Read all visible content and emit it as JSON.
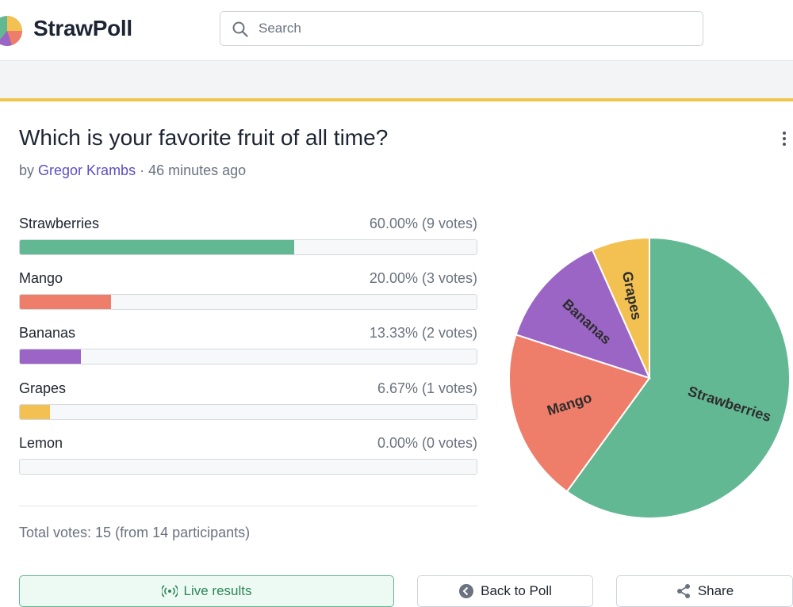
{
  "app": {
    "name": "StrawPoll"
  },
  "search": {
    "placeholder": "Search",
    "value": ""
  },
  "poll": {
    "title": "Which is your favorite fruit of all time?",
    "by_prefix": "by",
    "author": "Gregor Krambs",
    "separator": "·",
    "time_ago": "46 minutes ago",
    "total_text": "Total votes: 15 (from 14 participants)"
  },
  "options": [
    {
      "name": "Strawberries",
      "result": "60.00% (9 votes)",
      "percent": 60.0,
      "votes": 9,
      "color": "#63b894"
    },
    {
      "name": "Mango",
      "result": "20.00% (3 votes)",
      "percent": 20.0,
      "votes": 3,
      "color": "#ee7d6a"
    },
    {
      "name": "Bananas",
      "result": "13.33% (2 votes)",
      "percent": 13.33,
      "votes": 2,
      "color": "#9b65c5"
    },
    {
      "name": "Grapes",
      "result": "6.67% (1 votes)",
      "percent": 6.67,
      "votes": 1,
      "color": "#f3c052"
    },
    {
      "name": "Lemon",
      "result": "0.00% (0 votes)",
      "percent": 0.0,
      "votes": 0,
      "color": "#f7e06a"
    }
  ],
  "buttons": {
    "live": "Live results",
    "back": "Back to Poll",
    "share": "Share"
  },
  "chart_data": {
    "type": "pie",
    "categories": [
      "Strawberries",
      "Mango",
      "Bananas",
      "Grapes",
      "Lemon"
    ],
    "values": [
      60.0,
      20.0,
      13.33,
      6.67,
      0.0
    ],
    "colors": [
      "#63b894",
      "#ee7d6a",
      "#9b65c5",
      "#f3c052",
      "#f7e06a"
    ]
  },
  "icons": {
    "search": "search-icon",
    "menu": "more-vertical-icon",
    "live": "broadcast-icon",
    "back": "arrow-left-circle-icon",
    "share": "share-icon"
  }
}
